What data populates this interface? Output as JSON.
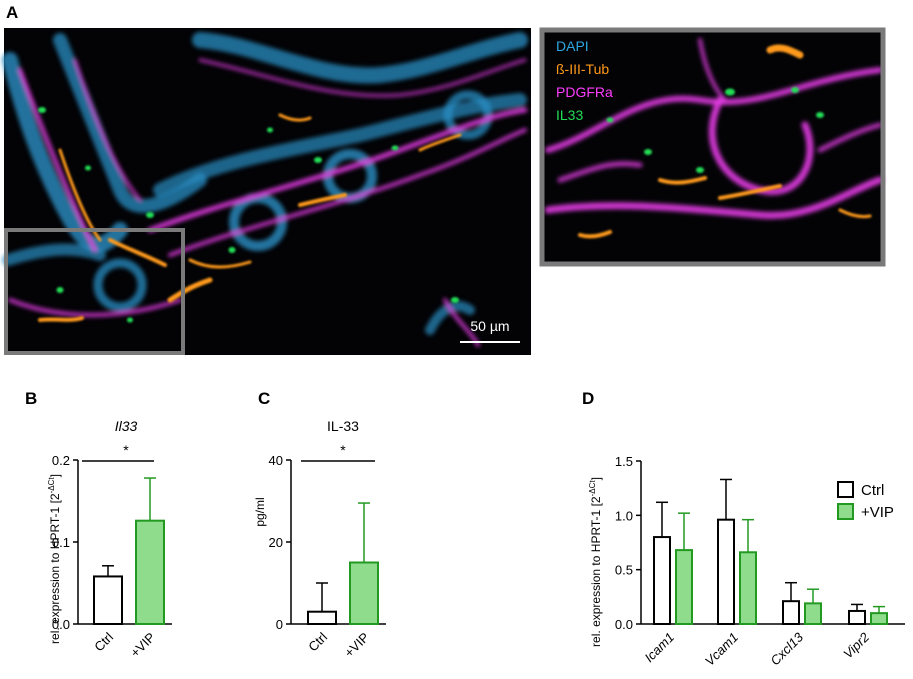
{
  "panel_labels": {
    "a": "A",
    "b": "B",
    "c": "C",
    "d": "D"
  },
  "micrograph": {
    "channels": [
      {
        "label": "DAPI",
        "color": "#2fa6e0"
      },
      {
        "label": "ß-III-Tub",
        "color": "#ff9a1a"
      },
      {
        "label": "PDGFRa",
        "color": "#ff3cff"
      },
      {
        "label": "IL33",
        "color": "#22dd55"
      }
    ],
    "scale_bar": "50 µm",
    "frame_color": "#7a7a7a"
  },
  "colors": {
    "ctrl_fill": "#ffffff",
    "ctrl_stroke": "#000000",
    "vip_fill": "#8fdc8c",
    "vip_stroke": "#229a22"
  },
  "chart_data": [
    {
      "type": "bar",
      "title": "Il33",
      "ylabel": "rel. expression to HPRT-1 [2",
      "ylabel_sup": "-ΔCt",
      "ylabel_close": "]",
      "categories": [
        "Ctrl",
        "+VIP"
      ],
      "values": [
        0.058,
        0.126
      ],
      "error_upper": [
        0.071,
        0.178
      ],
      "ylim": [
        0,
        0.2
      ],
      "yticks": [
        "0.0",
        "0.1",
        "0.2"
      ],
      "significance": "*"
    },
    {
      "type": "bar",
      "title": "IL-33",
      "ylabel": "pg/ml",
      "categories": [
        "Ctrl",
        "+VIP"
      ],
      "values": [
        3,
        15
      ],
      "error_upper": [
        10,
        29.5
      ],
      "ylim": [
        0,
        40
      ],
      "yticks": [
        "0",
        "20",
        "40"
      ],
      "significance": "*"
    },
    {
      "type": "bar",
      "ylabel": "rel. expression to HPRT-1 [2",
      "ylabel_sup": "-ΔCt",
      "ylabel_close": "]",
      "categories": [
        "Icam1",
        "Vcam1",
        "Cxcl13",
        "Vipr2"
      ],
      "series": [
        {
          "name": "Ctrl",
          "values": [
            0.8,
            0.96,
            0.21,
            0.12
          ],
          "error_upper": [
            1.12,
            1.33,
            0.38,
            0.18
          ]
        },
        {
          "name": "+VIP",
          "values": [
            0.68,
            0.66,
            0.19,
            0.1
          ],
          "error_upper": [
            1.02,
            0.96,
            0.32,
            0.16
          ]
        }
      ],
      "ylim": [
        0,
        1.5
      ],
      "yticks": [
        "0.0",
        "0.5",
        "1.0",
        "1.5"
      ],
      "legend": "top-right"
    }
  ]
}
